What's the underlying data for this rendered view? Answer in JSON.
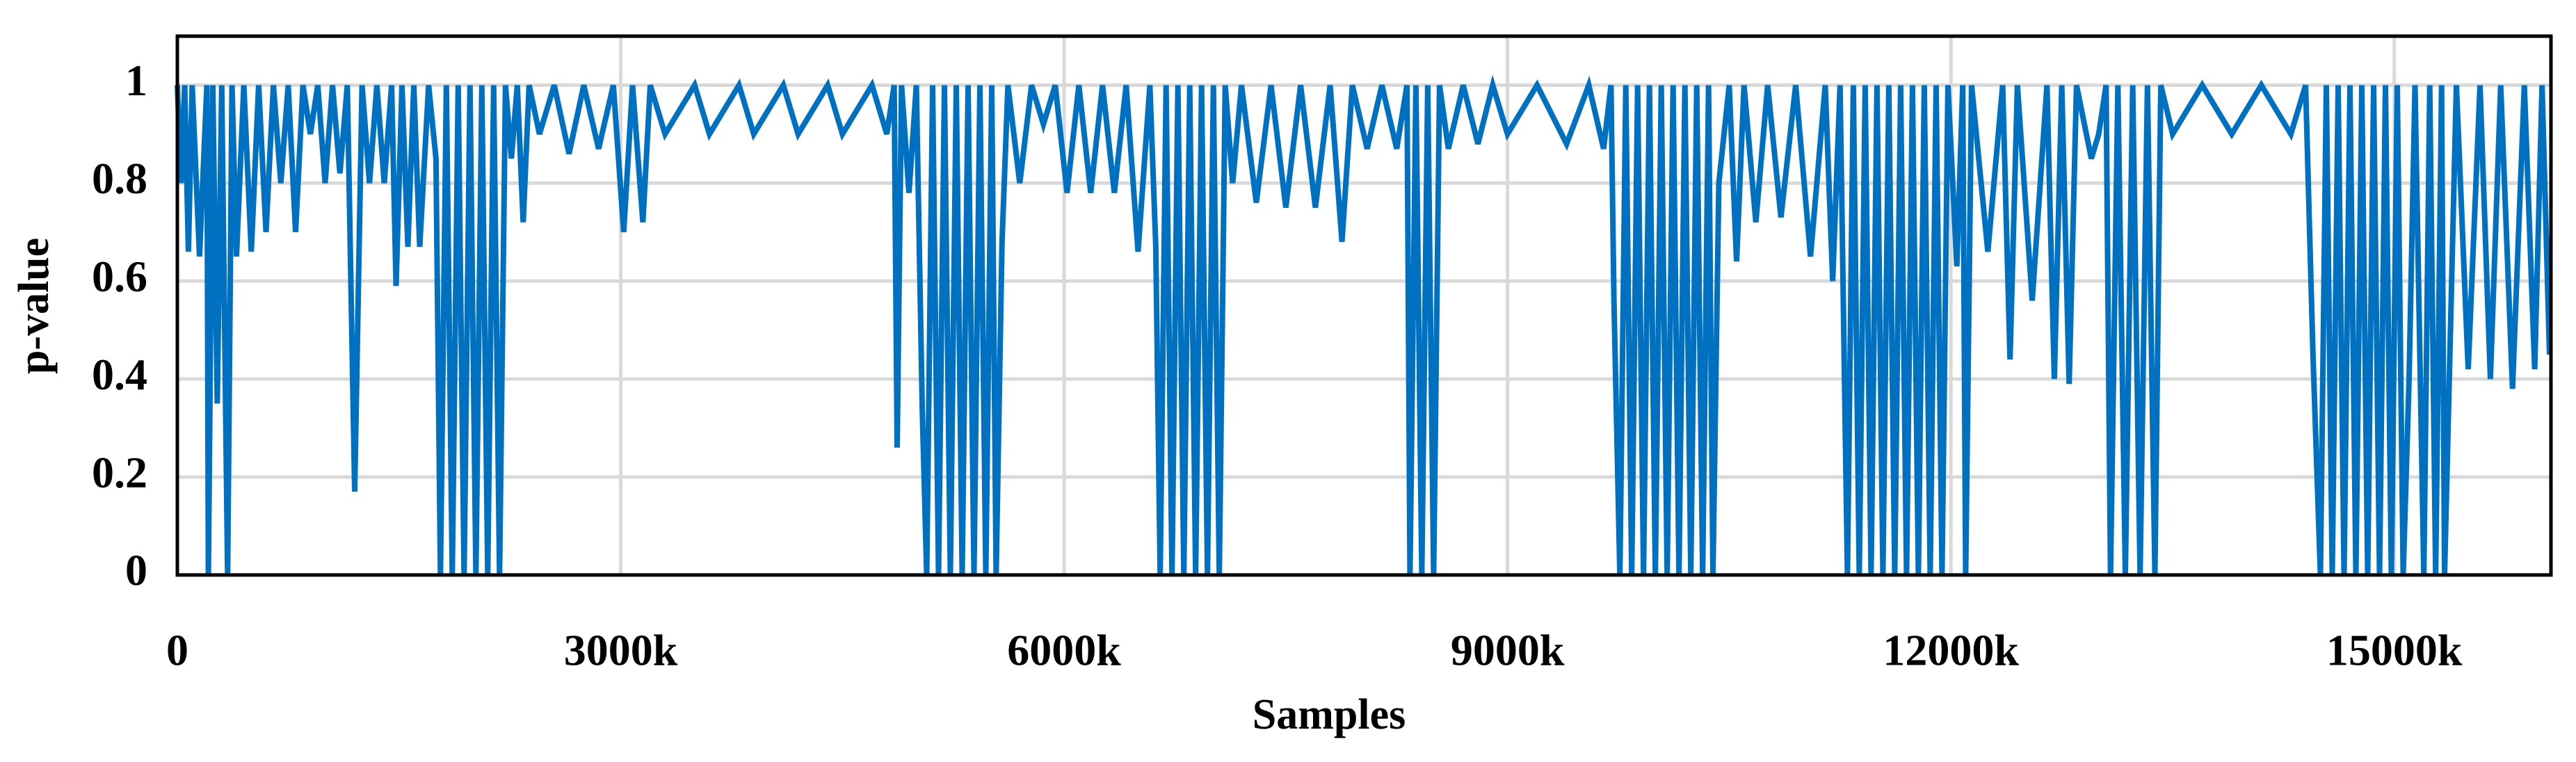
{
  "chart_data": {
    "type": "line",
    "x_label": "Samples",
    "y_label": "p-value",
    "color": "#0070c0",
    "grid": true,
    "xlim": [
      0,
      16060000
    ],
    "ylim": [
      0,
      1.1
    ],
    "xticks": [
      0,
      {
        "value": 3000000,
        "label": "3000k"
      },
      {
        "value": 6000000,
        "label": "6000k"
      },
      {
        "value": 9000000,
        "label": "9000k"
      },
      {
        "value": 12000000,
        "label": "12000k"
      },
      {
        "value": 15000000,
        "label": "15000k"
      }
    ],
    "yticks": [
      0,
      0.2,
      0.4,
      0.6,
      0.8,
      1
    ],
    "x": [
      0,
      25000,
      50000,
      75000,
      100000,
      150000,
      200000,
      210000,
      240000,
      270000,
      300000,
      340000,
      370000,
      400000,
      450000,
      500000,
      550000,
      600000,
      650000,
      700000,
      750000,
      800000,
      850000,
      900000,
      950000,
      1000000,
      1050000,
      1100000,
      1150000,
      1200000,
      1250000,
      1300000,
      1350000,
      1400000,
      1450000,
      1480000,
      1520000,
      1560000,
      1600000,
      1640000,
      1700000,
      1750000,
      1780000,
      1820000,
      1860000,
      1900000,
      1940000,
      1980000,
      2020000,
      2060000,
      2100000,
      2140000,
      2180000,
      2220000,
      2260000,
      2300000,
      2340000,
      2380000,
      2450000,
      2550000,
      2650000,
      2750000,
      2850000,
      2950000,
      3020000,
      3080000,
      3150000,
      3200000,
      3300000,
      3500000,
      3600000,
      3800000,
      3900000,
      4100000,
      4200000,
      4400000,
      4500000,
      4700000,
      4800000,
      4850000,
      4870000,
      4900000,
      4950000,
      5000000,
      5040000,
      5070000,
      5110000,
      5150000,
      5190000,
      5230000,
      5270000,
      5310000,
      5350000,
      5390000,
      5430000,
      5470000,
      5510000,
      5540000,
      5580000,
      5620000,
      5700000,
      5780000,
      5860000,
      5940000,
      6020000,
      6100000,
      6180000,
      6260000,
      6340000,
      6420000,
      6500000,
      6580000,
      6620000,
      6650000,
      6690000,
      6730000,
      6770000,
      6810000,
      6850000,
      6890000,
      6930000,
      6970000,
      7010000,
      7050000,
      7090000,
      7140000,
      7200000,
      7300000,
      7400000,
      7500000,
      7600000,
      7700000,
      7800000,
      7880000,
      7950000,
      8050000,
      8150000,
      8250000,
      8320000,
      8340000,
      8380000,
      8420000,
      8460000,
      8500000,
      8540000,
      8600000,
      8700000,
      8800000,
      8900000,
      9000000,
      9200000,
      9400000,
      9550000,
      9650000,
      9700000,
      9720000,
      9760000,
      9800000,
      9840000,
      9880000,
      9920000,
      9960000,
      10000000,
      10040000,
      10080000,
      10120000,
      10160000,
      10200000,
      10240000,
      10280000,
      10320000,
      10360000,
      10390000,
      10430000,
      10500000,
      10550000,
      10600000,
      10680000,
      10760000,
      10850000,
      10950000,
      11050000,
      11150000,
      11200000,
      11250000,
      11300000,
      11340000,
      11380000,
      11420000,
      11460000,
      11500000,
      11540000,
      11580000,
      11620000,
      11660000,
      11700000,
      11740000,
      11780000,
      11820000,
      11860000,
      11900000,
      11940000,
      11980000,
      12040000,
      12080000,
      12100000,
      12140000,
      12250000,
      12350000,
      12400000,
      12450000,
      12550000,
      12650000,
      12700000,
      12750000,
      12800000,
      12850000,
      12950000,
      13000000,
      13050000,
      13080000,
      13130000,
      13180000,
      13230000,
      13280000,
      13330000,
      13380000,
      13420000,
      13500000,
      13700000,
      13900000,
      14100000,
      14300000,
      14400000,
      14450000,
      14500000,
      14540000,
      14580000,
      14620000,
      14660000,
      14700000,
      14740000,
      14780000,
      14820000,
      14860000,
      14900000,
      14940000,
      14980000,
      15020000,
      15060000,
      15100000,
      15140000,
      15200000,
      15240000,
      15280000,
      15320000,
      15340000,
      15380000,
      15420000,
      15500000,
      15580000,
      15650000,
      15720000,
      15800000,
      15880000,
      15950000,
      16000000,
      16050000
    ],
    "values": [
      1,
      0.8,
      1,
      0.66,
      1,
      0.65,
      1,
      0,
      1,
      0.35,
      1,
      0,
      1,
      0.65,
      1,
      0.66,
      1,
      0.7,
      1,
      0.8,
      1,
      0.7,
      1,
      0.9,
      1,
      0.8,
      1,
      0.82,
      1,
      0.17,
      1,
      0.8,
      1,
      0.8,
      1,
      0.59,
      1,
      0.67,
      1,
      0.67,
      1,
      0.85,
      0,
      1,
      0,
      1,
      0,
      1,
      0,
      1,
      0,
      1,
      0,
      1,
      0.85,
      1,
      0.72,
      1,
      0.9,
      1,
      0.86,
      1,
      0.87,
      1,
      0.7,
      1,
      0.72,
      1,
      0.9,
      1,
      0.9,
      1,
      0.9,
      1,
      0.9,
      1,
      0.9,
      1,
      0.9,
      1,
      0.26,
      1,
      0.78,
      1,
      0.34,
      0,
      1,
      0,
      1,
      0,
      1,
      0,
      1,
      0,
      1,
      0,
      1,
      0,
      0.68,
      1,
      0.8,
      1,
      0.92,
      1,
      0.78,
      1,
      0.78,
      1,
      0.78,
      1,
      0.66,
      1,
      0.67,
      0,
      1,
      0,
      1,
      0,
      1,
      0,
      1,
      0,
      1,
      0,
      1,
      0.8,
      1,
      0.76,
      1,
      0.75,
      1,
      0.75,
      1,
      0.68,
      1,
      0.87,
      1,
      0.87,
      1,
      0,
      1,
      0,
      1,
      0,
      1,
      0.87,
      1,
      0.88,
      1,
      0.9,
      1,
      0.88,
      1,
      0.87,
      1,
      0.56,
      0,
      1,
      0,
      1,
      0,
      1,
      0,
      1,
      0,
      1,
      0,
      1,
      0,
      1,
      0,
      1,
      0,
      0.8,
      1,
      0.64,
      1,
      0.72,
      1,
      0.73,
      1,
      0.65,
      1,
      0.6,
      1,
      0,
      1,
      0,
      1,
      0,
      1,
      0,
      1,
      0,
      1,
      0,
      1,
      0,
      1,
      0,
      1,
      0,
      1,
      0.63,
      1,
      0,
      1,
      0.66,
      1,
      0.44,
      1,
      0.56,
      1,
      0.4,
      1,
      0.39,
      1,
      0.85,
      0.9,
      1,
      0,
      1,
      0,
      1,
      0,
      1,
      0,
      1,
      0.9,
      1,
      0.9,
      1,
      0.9,
      1,
      0.45,
      0,
      1,
      0,
      1,
      0,
      1,
      0,
      1,
      0,
      1,
      0,
      1,
      0,
      1,
      0,
      0.4,
      1,
      0,
      1,
      0,
      1,
      0,
      0.5,
      1,
      0.42,
      1,
      0.4,
      1,
      0.38,
      1,
      0.42,
      1,
      0.45
    ]
  }
}
